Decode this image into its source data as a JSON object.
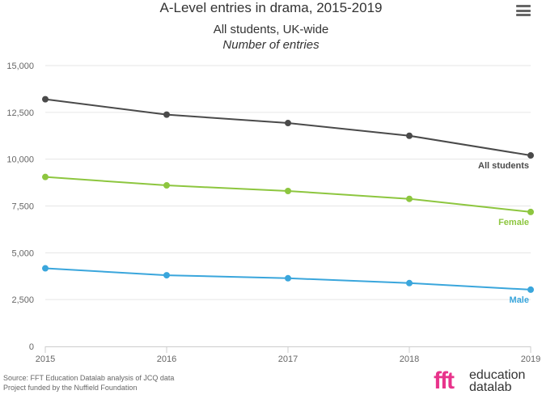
{
  "header": {
    "title": "A-Level entries in drama, 2015-2019",
    "subtitle": "All students, UK-wide",
    "subtitle2": "Number of entries"
  },
  "footer": {
    "source": "Source: FFT Education Datalab analysis of JCQ data",
    "funding": "Project funded by the Nuffield Foundation"
  },
  "logo": {
    "mark": "fft",
    "line1": "education",
    "line2": "datalab"
  },
  "menu_icon": "hamburger-menu-icon",
  "chart_data": {
    "type": "line",
    "title": "A-Level entries in drama, 2015-2019",
    "subtitle": "All students, UK-wide",
    "ylabel": "Number of entries",
    "x": [
      "2015",
      "2016",
      "2017",
      "2018",
      "2019"
    ],
    "ylim": [
      0,
      15000
    ],
    "yticks": [
      0,
      2500,
      5000,
      7500,
      10000,
      12500,
      15000
    ],
    "ytick_labels": [
      "0",
      "2,500",
      "5,000",
      "7,500",
      "10,000",
      "12,500",
      "15,000"
    ],
    "grid": true,
    "series": [
      {
        "name": "All students",
        "values": [
          13200,
          12380,
          11930,
          11250,
          10200
        ],
        "color": "#4a4a4a"
      },
      {
        "name": "Female",
        "values": [
          9050,
          8600,
          8300,
          7880,
          7180
        ],
        "color": "#8dc63f"
      },
      {
        "name": "Male",
        "values": [
          4170,
          3800,
          3640,
          3380,
          3030
        ],
        "color": "#3aa6dc"
      }
    ]
  }
}
